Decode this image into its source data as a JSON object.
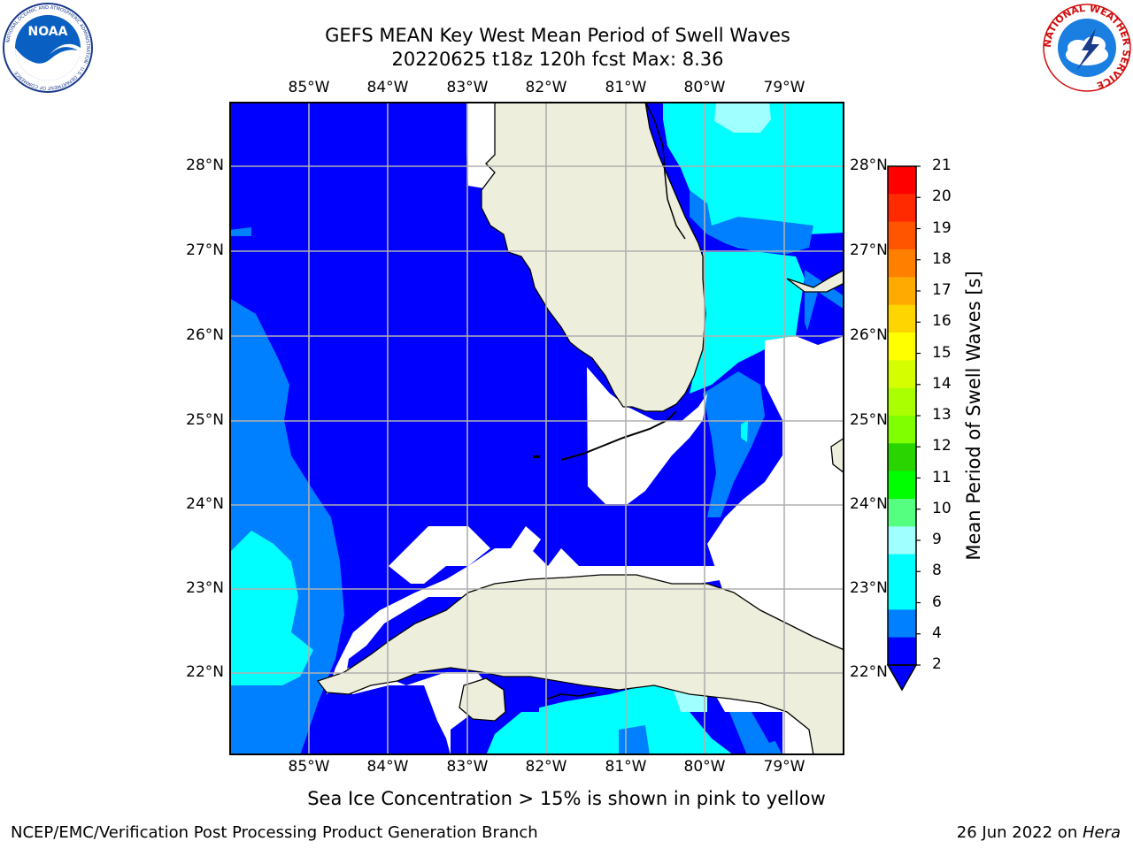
{
  "title": {
    "line1": "GEFS MEAN Key West Mean Period of Swell Waves",
    "line2": "20220625 t18z 120h fcst   Max: 8.36"
  },
  "map": {
    "lon_labels": [
      "85°W",
      "84°W",
      "83°W",
      "82°W",
      "81°W",
      "80°W",
      "79°W"
    ],
    "lat_labels": [
      "28°N",
      "27°N",
      "26°N",
      "25°N",
      "24°N",
      "23°N",
      "22°N"
    ],
    "colors": {
      "land": "#eeeedc",
      "ocean_2_4": "#0000ff",
      "ocean_4_6": "#0080ff",
      "ocean_6_8": "#00ffff",
      "ocean_8_9": "#a0ffff",
      "grid": "#b0b0b0"
    }
  },
  "colorbar": {
    "label": "Mean Period of Swell Waves [s]",
    "ticks": [
      "21",
      "20",
      "19",
      "18",
      "17",
      "16",
      "15",
      "14",
      "13",
      "12",
      "11",
      "10",
      "9",
      "8",
      "6",
      "4",
      "2"
    ],
    "colors": [
      "#ff0000",
      "#ff2a00",
      "#ff5500",
      "#ff8000",
      "#ffaa00",
      "#ffd500",
      "#ffff00",
      "#d5ff00",
      "#aaff00",
      "#80ff00",
      "#2ad400",
      "#00ff00",
      "#55ff7f",
      "#a0ffff",
      "#00ffff",
      "#00ffff",
      "#0080ff",
      "#0000ff"
    ]
  },
  "note": "Sea Ice Concentration > 15% is shown in pink to yellow",
  "footer": {
    "left": "NCEP/EMC/Verification Post Processing Product Generation Branch",
    "right_date": "26 Jun 2022 on ",
    "right_host": "Hera"
  },
  "logos": {
    "left": "NOAA",
    "left_ring": "NATIONAL OCEANIC AND ATMOSPHERIC ADMINISTRATION · U.S. DEPARTMENT OF COMMERCE",
    "right_ring": "NATIONAL WEATHER SERVICE"
  }
}
